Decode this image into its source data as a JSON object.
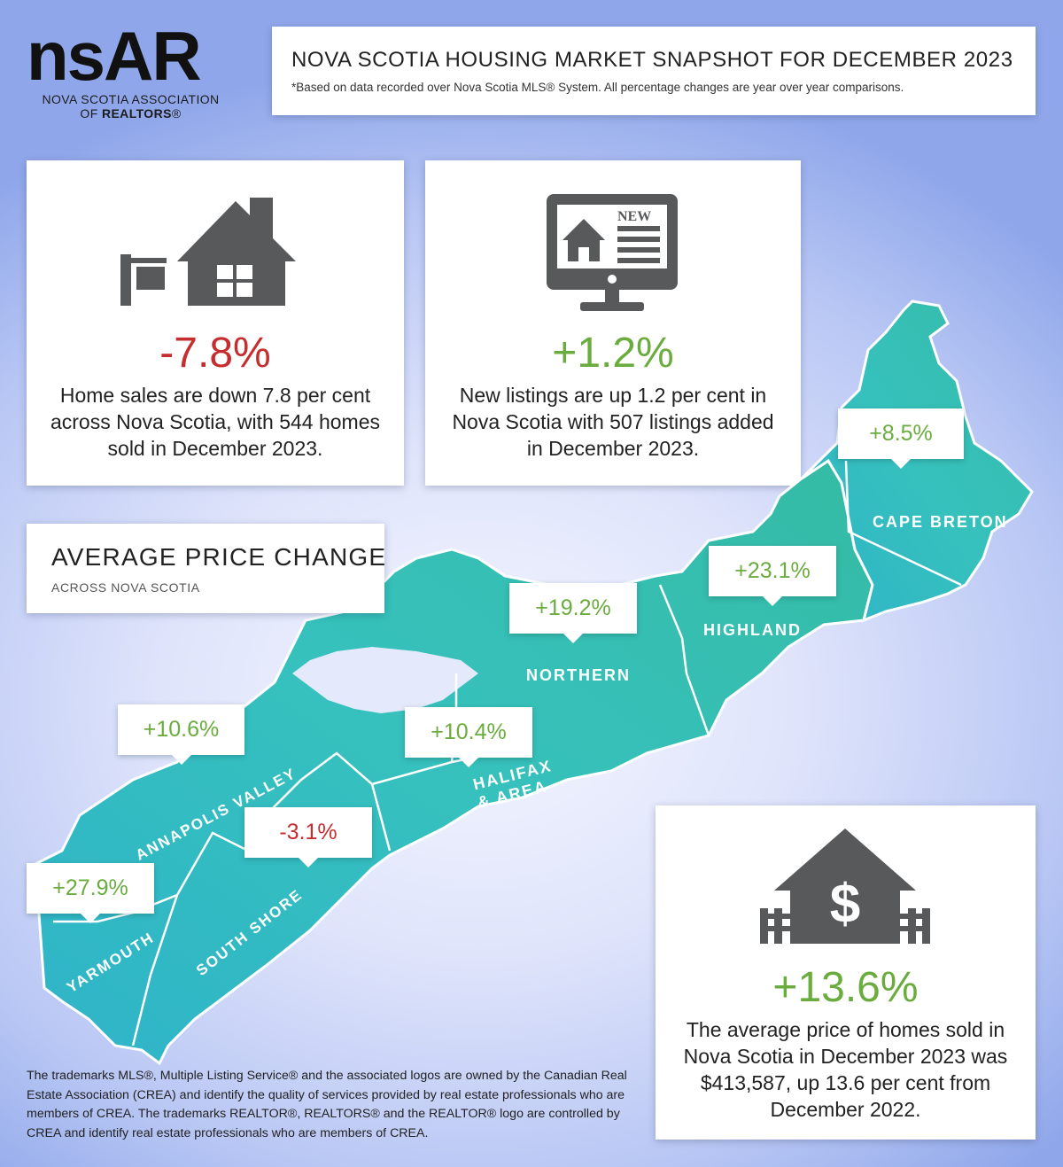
{
  "logo": {
    "wordmark": "nsAR",
    "org_line1": "NOVA SCOTIA ASSOCIATION",
    "org_line2_prefix": "OF ",
    "org_line2_bold": "REALTORS",
    "org_line2_suffix": "®"
  },
  "header": {
    "title": "NOVA SCOTIA HOUSING MARKET SNAPSHOT FOR DECEMBER 2023",
    "subtitle": "*Based on data recorded over Nova Scotia MLS® System. All percentage changes are year over year comparisons."
  },
  "sales": {
    "change": "-7.8%",
    "description": "Home sales are down 7.8 per cent across Nova Scotia, with 544 homes sold in December 2023.",
    "icon": "house-for-sale-icon"
  },
  "listings": {
    "change": "+1.2%",
    "description": "New listings are up 1.2 per cent in Nova Scotia with 507 listings added in December 2023.",
    "icon_badge": "NEW",
    "icon": "computer-listing-icon"
  },
  "average_price": {
    "title": "AVERAGE PRICE CHANGE",
    "subtitle": "ACROSS NOVA SCOTIA"
  },
  "regions": [
    {
      "label": "CAPE BRETON",
      "change": "+8.5%"
    },
    {
      "label": "HIGHLAND",
      "change": "+23.1%"
    },
    {
      "label": "NORTHERN",
      "change": "+19.2%"
    },
    {
      "label": "HALIFAX",
      "label2": "& AREA",
      "change": "+10.4%"
    },
    {
      "label": "ANNAPOLIS VALLEY",
      "change": "+10.6%"
    },
    {
      "label": "SOUTH SHORE",
      "change": "-3.1%"
    },
    {
      "label": "YARMOUTH",
      "change": "+27.9%"
    }
  ],
  "price": {
    "change": "+13.6%",
    "description": "The average price of homes sold in Nova Scotia in December 2023 was $413,587, up 13.6 per cent from December 2022.",
    "icon_symbol": "$",
    "icon": "house-dollar-icon"
  },
  "footer": {
    "text": "The trademarks MLS®, Multiple Listing Service® and the associated logos are owned by the Canadian Real Estate Association (CREA) and identify the quality of services provided by real estate professionals who are members of CREA. The trademarks REALTOR®, REALTORS® and the REALTOR® logo are controlled by CREA and identify real estate professionals who are members of CREA."
  },
  "colors": {
    "map_fill": "#35bfbe",
    "map_border": "#ffffff",
    "negative": "#c62d2f",
    "positive": "#6aac3e",
    "icon_gray": "#58595b"
  }
}
